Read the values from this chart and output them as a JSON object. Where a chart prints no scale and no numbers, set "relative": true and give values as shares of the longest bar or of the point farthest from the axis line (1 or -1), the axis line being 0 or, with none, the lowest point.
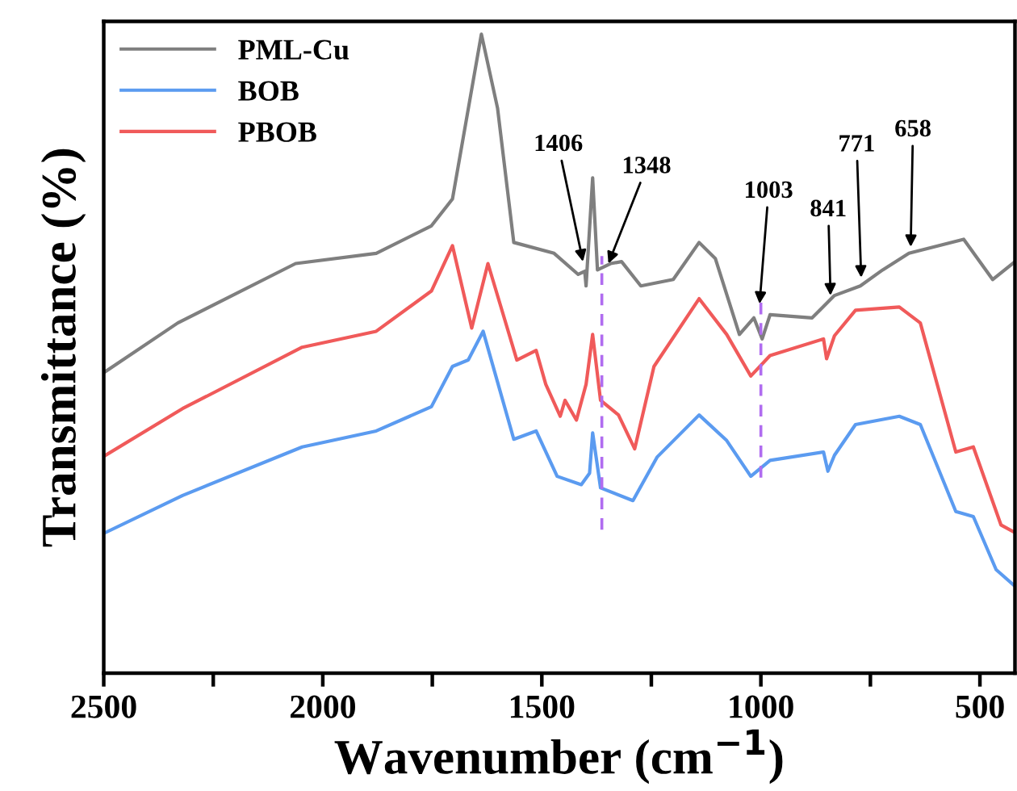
{
  "chart_data": {
    "type": "line",
    "relative": true,
    "xlabel": "Wavenumber (cm$^{−1}$)",
    "ylabel": "Transmittance (%)",
    "xlim": [
      2500,
      420
    ],
    "xticks": [
      2500,
      {
        "value": 2250,
        "label": null
      },
      2000,
      {
        "value": 1750,
        "label": null
      },
      1500,
      {
        "value": 1250,
        "label": null
      },
      1000,
      {
        "value": 750,
        "label": null
      },
      500
    ],
    "tick_labels": "x",
    "grid": false,
    "legend": "top left",
    "series": [
      {
        "name": "PML-Cu",
        "color": "#7f7f7f",
        "x": [
          2496,
          2331,
          2062,
          1878,
          1752,
          1704,
          1638,
          1601,
          1564,
          1472,
          1417,
          1402,
          1399,
          1384,
          1373,
          1343,
          1318,
          1274,
          1200,
          1141,
          1104,
          1049,
          1016,
          997,
          979,
          883,
          832,
          773,
          722,
          662,
          537,
          471,
          420
        ],
        "values": [
          0.472,
          0.548,
          0.641,
          0.657,
          0.7,
          0.742,
          1.0,
          0.884,
          0.674,
          0.657,
          0.624,
          0.629,
          0.606,
          0.775,
          0.631,
          0.641,
          0.644,
          0.606,
          0.616,
          0.674,
          0.649,
          0.53,
          0.556,
          0.523,
          0.561,
          0.556,
          0.591,
          0.606,
          0.631,
          0.657,
          0.679,
          0.616,
          0.644
        ]
      },
      {
        "name": "BOB",
        "color": "#5b9bf0",
        "x": [
          2496,
          2320,
          2047,
          1878,
          1752,
          1704,
          1668,
          1634,
          1564,
          1513,
          1465,
          1410,
          1391,
          1384,
          1366,
          1292,
          1237,
          1141,
          1078,
          1023,
          979,
          857,
          847,
          832,
          784,
          684,
          636,
          555,
          515,
          463,
          420
        ],
        "values": [
          0.22,
          0.278,
          0.354,
          0.379,
          0.417,
          0.48,
          0.49,
          0.535,
          0.366,
          0.379,
          0.308,
          0.295,
          0.313,
          0.376,
          0.29,
          0.27,
          0.338,
          0.404,
          0.364,
          0.308,
          0.333,
          0.346,
          0.316,
          0.341,
          0.389,
          0.402,
          0.389,
          0.253,
          0.245,
          0.162,
          0.136
        ]
      },
      {
        "name": "PBOB",
        "color": "#f05a5a",
        "x": [
          2496,
          2320,
          2047,
          1878,
          1752,
          1704,
          1660,
          1623,
          1557,
          1513,
          1491,
          1458,
          1447,
          1421,
          1399,
          1384,
          1366,
          1325,
          1288,
          1244,
          1141,
          1078,
          1023,
          979,
          857,
          850,
          832,
          784,
          684,
          636,
          555,
          515,
          452,
          420
        ],
        "values": [
          0.341,
          0.414,
          0.51,
          0.535,
          0.598,
          0.669,
          0.54,
          0.641,
          0.49,
          0.505,
          0.452,
          0.402,
          0.427,
          0.396,
          0.452,
          0.53,
          0.427,
          0.404,
          0.351,
          0.48,
          0.586,
          0.53,
          0.465,
          0.497,
          0.523,
          0.492,
          0.528,
          0.568,
          0.573,
          0.548,
          0.346,
          0.354,
          0.232,
          0.22
        ]
      }
    ],
    "ref_lines": [
      {
        "axis": "x",
        "value": 1363,
        "color": "#b06cf0",
        "line_style": "dashed"
      },
      {
        "axis": "x",
        "value": 1000,
        "color": "#b06cf0",
        "line_style": "dashed"
      }
    ],
    "annotations": [
      {
        "text": "1406",
        "x": 1406,
        "y": 0.644
      },
      {
        "text": "1348",
        "x": 1348,
        "y": 0.641
      },
      {
        "text": "1003",
        "x": 1003,
        "y": 0.578
      },
      {
        "text": "841",
        "x": 841,
        "y": 0.591
      },
      {
        "text": "771",
        "x": 771,
        "y": 0.619
      },
      {
        "text": "658",
        "x": 658,
        "y": 0.667
      }
    ]
  }
}
